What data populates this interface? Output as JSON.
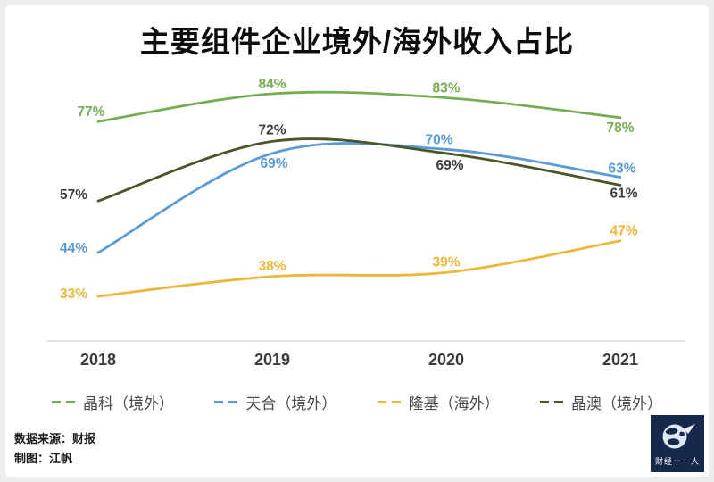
{
  "title": "主要组件企业境外/海外收入占比",
  "source_line1": "数据来源：财报",
  "source_line2": "制图：江帆",
  "logo": {
    "text": "财经十一人",
    "icon": "globe-plane-icon",
    "background": "#16294d"
  },
  "chart_data": {
    "type": "line",
    "title": "主要组件企业境外/海外收入占比",
    "categories": [
      "2018",
      "2019",
      "2020",
      "2021"
    ],
    "series": [
      {
        "name": "晶科（境外）",
        "values": [
          77,
          84,
          83,
          78
        ],
        "color": "#76AC53"
      },
      {
        "name": "天合（境外）",
        "values": [
          44,
          69,
          70,
          63
        ],
        "color": "#5B9BD5"
      },
      {
        "name": "隆基（海外）",
        "values": [
          33,
          38,
          39,
          47
        ],
        "color": "#ECB73C"
      },
      {
        "name": "晶澳（境外）",
        "values": [
          57,
          72,
          69,
          61
        ],
        "color": "#4A5528",
        "label_color": "#3f3f3f"
      }
    ],
    "value_suffix": "%",
    "ylim": [
      30,
      90
    ],
    "grid": false,
    "legend_position": "bottom",
    "axis_line_color": "#d9d9d9"
  }
}
